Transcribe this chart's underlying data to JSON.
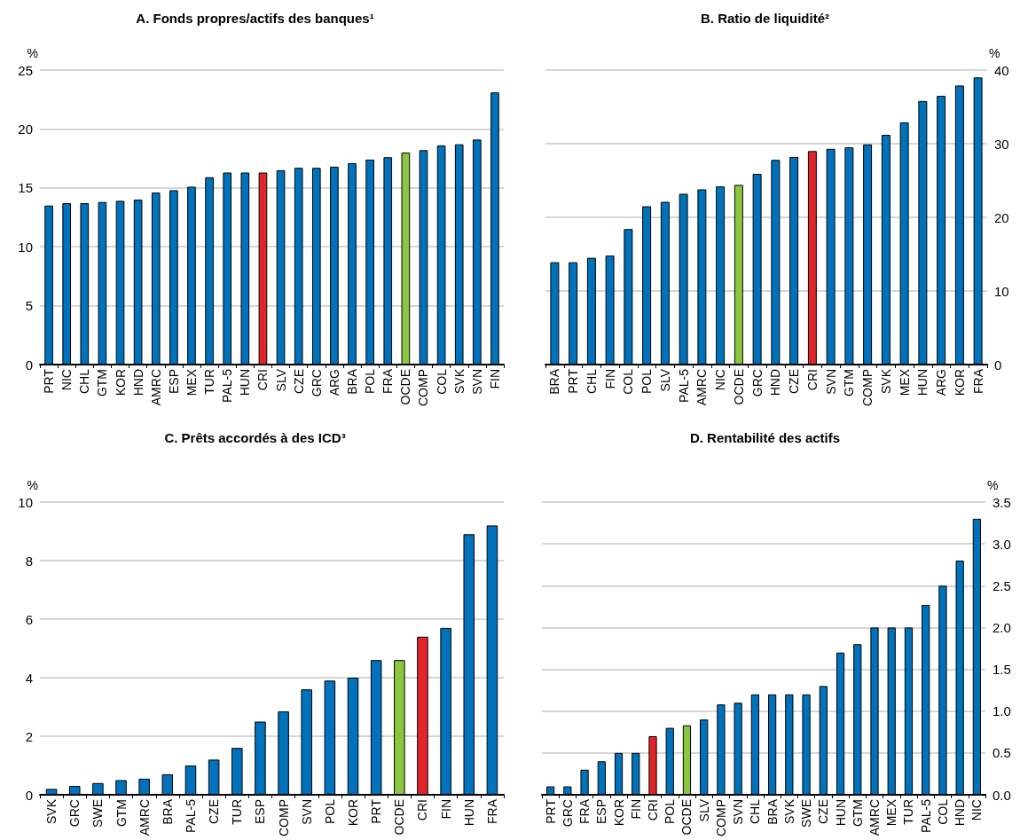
{
  "chart_data": [
    {
      "type": "bar",
      "title": "A. Fonds propres/actifs des banques¹",
      "ylabel": "%",
      "ylim": [
        0,
        25
      ],
      "yticks": [
        0,
        5,
        10,
        15,
        20,
        25
      ],
      "grid": "y",
      "categories": [
        "PRT",
        "NIC",
        "CHL",
        "GTM",
        "KOR",
        "HND",
        "AMRC",
        "ESP",
        "MEX",
        "TUR",
        "PAL-5",
        "HUN",
        "CRI",
        "SLV",
        "CZE",
        "GRC",
        "ARG",
        "BRA",
        "POL",
        "FRA",
        "OCDE",
        "COMP",
        "COL",
        "SVK",
        "SVN",
        "FIN"
      ],
      "series": [
        {
          "values": [
            13.5,
            13.7,
            13.7,
            13.8,
            13.9,
            14.0,
            14.6,
            14.8,
            15.1,
            15.9,
            16.3,
            16.3,
            16.3,
            16.5,
            16.7,
            16.7,
            16.8,
            17.1,
            17.4,
            17.6,
            18.0,
            18.2,
            18.6,
            18.7,
            19.1,
            23.1
          ],
          "colors": [
            "#0072bc",
            "#0072bc",
            "#0072bc",
            "#0072bc",
            "#0072bc",
            "#0072bc",
            "#0072bc",
            "#0072bc",
            "#0072bc",
            "#0072bc",
            "#0072bc",
            "#0072bc",
            "#e0262b",
            "#0072bc",
            "#0072bc",
            "#0072bc",
            "#0072bc",
            "#0072bc",
            "#0072bc",
            "#0072bc",
            "#8cc63f",
            "#0072bc",
            "#0072bc",
            "#0072bc",
            "#0072bc",
            "#0072bc"
          ]
        }
      ]
    },
    {
      "type": "bar",
      "title": "B. Ratio de liquidité²",
      "y2label": "%",
      "y2lim": [
        0,
        40
      ],
      "y2ticks": [
        0,
        10,
        20,
        30,
        40
      ],
      "grid": "y",
      "categories": [
        "BRA",
        "PRT",
        "CHL",
        "FIN",
        "COL",
        "POL",
        "SLV",
        "PAL-5",
        "AMRC",
        "NIC",
        "OCDE",
        "GRC",
        "HND",
        "CZE",
        "CRI",
        "SVN",
        "GTM",
        "COMP",
        "SVK",
        "MEX",
        "HUN",
        "ARG",
        "KOR",
        "FRA"
      ],
      "series": [
        {
          "axis": "y2",
          "values": [
            13.9,
            13.9,
            14.5,
            14.8,
            18.4,
            21.5,
            22.1,
            23.2,
            23.8,
            24.2,
            24.4,
            25.9,
            27.8,
            28.2,
            29.0,
            29.3,
            29.5,
            29.9,
            31.2,
            32.9,
            35.8,
            36.5,
            37.9,
            39.0
          ],
          "colors": [
            "#0072bc",
            "#0072bc",
            "#0072bc",
            "#0072bc",
            "#0072bc",
            "#0072bc",
            "#0072bc",
            "#0072bc",
            "#0072bc",
            "#0072bc",
            "#8cc63f",
            "#0072bc",
            "#0072bc",
            "#0072bc",
            "#e0262b",
            "#0072bc",
            "#0072bc",
            "#0072bc",
            "#0072bc",
            "#0072bc",
            "#0072bc",
            "#0072bc",
            "#0072bc",
            "#0072bc"
          ]
        }
      ]
    },
    {
      "type": "bar",
      "title": "C. Prêts accordés à des ICD³",
      "ylabel": "%",
      "ylim": [
        0,
        10
      ],
      "yticks": [
        0,
        2,
        4,
        6,
        8,
        10
      ],
      "grid": "y",
      "categories": [
        "SVK",
        "GRC",
        "SWE",
        "GTM",
        "AMRC",
        "BRA",
        "PAL-5",
        "CZE",
        "TUR",
        "ESP",
        "COMP",
        "SVN",
        "POL",
        "KOR",
        "PRT",
        "OCDE",
        "CRI",
        "FIN",
        "HUN",
        "FRA"
      ],
      "series": [
        {
          "values": [
            0.2,
            0.3,
            0.4,
            0.5,
            0.55,
            0.7,
            1.0,
            1.2,
            1.6,
            2.5,
            2.85,
            3.6,
            3.9,
            4.0,
            4.6,
            4.6,
            5.4,
            5.7,
            8.9,
            9.2
          ],
          "colors": [
            "#0072bc",
            "#0072bc",
            "#0072bc",
            "#0072bc",
            "#0072bc",
            "#0072bc",
            "#0072bc",
            "#0072bc",
            "#0072bc",
            "#0072bc",
            "#0072bc",
            "#0072bc",
            "#0072bc",
            "#0072bc",
            "#0072bc",
            "#8cc63f",
            "#e0262b",
            "#0072bc",
            "#0072bc",
            "#0072bc"
          ]
        }
      ]
    },
    {
      "type": "bar",
      "title": "D. Rentabilité des actifs",
      "y2label": "%",
      "y2lim": [
        0,
        3.5
      ],
      "y2ticks": [
        {
          "value": 0,
          "label": "0.0"
        },
        0.5,
        {
          "value": 1,
          "label": "1.0"
        },
        1.5,
        {
          "value": 2,
          "label": "2.0"
        },
        2.5,
        {
          "value": 3,
          "label": "3.0"
        },
        3.5
      ],
      "grid": "y",
      "categories": [
        "PRT",
        "GRC",
        "FRA",
        "ESP",
        "KOR",
        "FIN",
        "CRI",
        "POL",
        "OCDE",
        "SLV",
        "COMP",
        "SVN",
        "CHL",
        "BRA",
        "SVK",
        "SWE",
        "CZE",
        "HUN",
        "GTM",
        "AMRC",
        "MEX",
        "TUR",
        "PAL-5",
        "COL",
        "HND",
        "NIC"
      ],
      "series": [
        {
          "axis": "y2",
          "values": [
            0.1,
            0.1,
            0.3,
            0.4,
            0.5,
            0.5,
            0.7,
            0.8,
            0.83,
            0.9,
            1.08,
            1.1,
            1.2,
            1.2,
            1.2,
            1.2,
            1.3,
            1.7,
            1.8,
            2.0,
            2.0,
            2.0,
            2.27,
            2.5,
            2.8,
            3.3
          ],
          "colors": [
            "#0072bc",
            "#0072bc",
            "#0072bc",
            "#0072bc",
            "#0072bc",
            "#0072bc",
            "#e0262b",
            "#0072bc",
            "#8cc63f",
            "#0072bc",
            "#0072bc",
            "#0072bc",
            "#0072bc",
            "#0072bc",
            "#0072bc",
            "#0072bc",
            "#0072bc",
            "#0072bc",
            "#0072bc",
            "#0072bc",
            "#0072bc",
            "#0072bc",
            "#0072bc",
            "#0072bc",
            "#0072bc",
            "#0072bc"
          ]
        }
      ]
    }
  ]
}
